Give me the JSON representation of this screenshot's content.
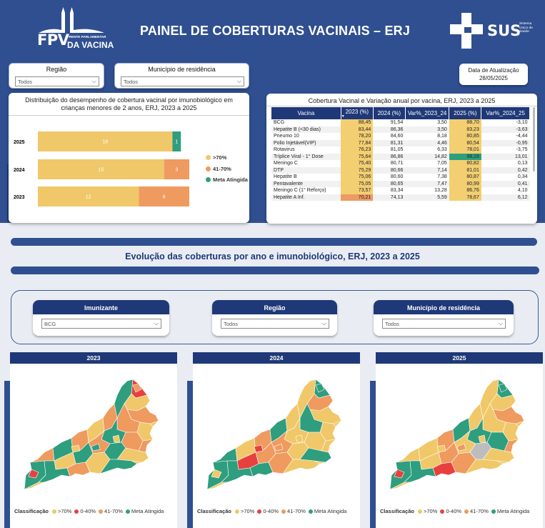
{
  "header": {
    "logo_fpv": "FPV",
    "logo_line1": "FRENTE PARLAMENTAR",
    "logo_line2": "DA VACINA",
    "title": "PAINEL DE COBERTURAS VACINAIS – ERJ",
    "sus_word": "SUS",
    "sus_sub": "Sistema Único de Saúde"
  },
  "top_filters": {
    "regiao": {
      "label": "Região",
      "value": "Todos"
    },
    "municipio": {
      "label": "Município de residência",
      "value": "Todos"
    }
  },
  "update": {
    "label": "Data de Atualização",
    "date": "28/05/2025"
  },
  "bar_panel": {
    "title": "Distribuição do desempenho de cobertura vacinal por imunobiológico em crianças menores de 2 anos, ERJ, 2023 a 2025",
    "legend": [
      {
        "label": ">70%",
        "color": "#f0c869"
      },
      {
        "label": "41-70%",
        "color": "#ef9a5f"
      },
      {
        "label": "Meta Atingida",
        "color": "#2e9e7e"
      }
    ]
  },
  "chart_data": {
    "type": "bar",
    "orientation": "horizontal-stacked",
    "title": "Distribuição do desempenho de cobertura vacinal por imunobiológico em crianças menores de 2 anos, ERJ, 2023 a 2025",
    "categories": [
      "2025",
      "2024",
      "2023"
    ],
    "series": [
      {
        "name": ">70%",
        "values": [
          16,
          15,
          12
        ],
        "color": "#f0c869"
      },
      {
        "name": "41-70%",
        "values": [
          0,
          3,
          6
        ],
        "color": "#ef9a5f"
      },
      {
        "name": "Meta Atingida",
        "values": [
          1,
          0,
          0
        ],
        "color": "#2e9e7e"
      }
    ]
  },
  "table_panel": {
    "title": "Cobertura Vacinal e Variação anual por vacina, ERJ, 2023 a 2025",
    "columns": [
      "Vacina",
      "2023 (%)",
      "2024 (%)",
      "Var%_2023_24",
      "2025 (%)",
      "Var%_2024_25"
    ],
    "rows": [
      [
        "BCG",
        "88,45",
        "91,54",
        "3,50",
        "88,70",
        "-3,10"
      ],
      [
        "Hepatite B (<30 dias)",
        "83,44",
        "86,36",
        "3,50",
        "83,23",
        "-3,63"
      ],
      [
        "Pneumo 10",
        "78,20",
        "84,60",
        "8,18",
        "80,85",
        "-4,44"
      ],
      [
        "Polio Injetável(VIP)",
        "77,84",
        "81,31",
        "4,46",
        "80,54",
        "-0,95"
      ],
      [
        "Rotavirus",
        "76,23",
        "81,05",
        "6,33",
        "78,01",
        "-3,75"
      ],
      [
        "Tríplice Viral - 1° Dose",
        "75,64",
        "86,86",
        "14,82",
        "98,16",
        "13,01"
      ],
      [
        "Meningo C",
        "75,40",
        "80,71",
        "7,05",
        "80,82",
        "0,13"
      ],
      [
        "DTP",
        "75,29",
        "80,66",
        "7,14",
        "81,01",
        "0,42"
      ],
      [
        "Hepatite B",
        "75,06",
        "80,60",
        "7,38",
        "80,87",
        "0,34"
      ],
      [
        "Pentavalente",
        "75,05",
        "80,65",
        "7,47",
        "80,99",
        "0,41"
      ],
      [
        "Meningo C (1° Reforço)",
        "73,57",
        "83,34",
        "13,28",
        "86,76",
        "4,10"
      ],
      [
        "Hepatite A Inf.",
        "70,21",
        "74,13",
        "5,59",
        "78,67",
        "6,12"
      ]
    ]
  },
  "section": {
    "title": "Evolução das coberturas por ano e imunobiológico, ERJ, 2023 a 2025"
  },
  "bottom_filters": {
    "imunizante": {
      "label": "Imunizante",
      "value": "BCG"
    },
    "regiao": {
      "label": "Região",
      "value": "Todos"
    },
    "municipio": {
      "label": "Município de residência",
      "value": "Todos"
    }
  },
  "maps": [
    {
      "year": "2023"
    },
    {
      "year": "2024"
    },
    {
      "year": "2025"
    }
  ],
  "map_legend": {
    "title": "Classificação",
    "items": [
      {
        "label": ">70%",
        "color": "#f0c869"
      },
      {
        "label": "0-40%",
        "color": "#e8403f"
      },
      {
        "label": "41-70%",
        "color": "#ef9a5f"
      },
      {
        "label": "Meta Atingida",
        "color": "#2e9e7e"
      }
    ]
  }
}
